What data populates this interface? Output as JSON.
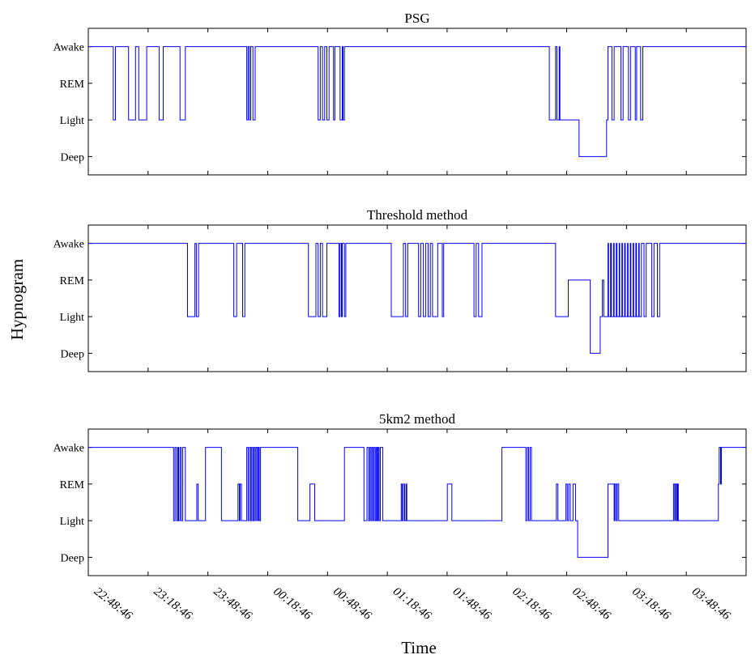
{
  "figure": {
    "ylabel": "Hypnogram",
    "xlabel": "Time"
  },
  "chart_data": [
    {
      "type": "line",
      "step": true,
      "title": "PSG",
      "ylabel": "",
      "xlabel": "",
      "stages": [
        "Deep",
        "Light",
        "REM",
        "Awake"
      ],
      "ylim": [
        -0.5,
        3.5
      ],
      "x_unit": "minutes after 22:48:46",
      "xlim": [
        0,
        330
      ],
      "xticks": [
        "22:48:46",
        "23:18:46",
        "23:48:46",
        "00:18:46",
        "00:48:46",
        "01:18:46",
        "01:48:46",
        "02:18:46",
        "02:48:46",
        "03:18:46",
        "03:48:46"
      ],
      "color": "#0000ff",
      "points": [
        [
          0,
          3
        ],
        [
          12.5,
          1
        ],
        [
          13.6,
          3
        ],
        [
          20.2,
          1
        ],
        [
          23.7,
          3
        ],
        [
          25.3,
          1
        ],
        [
          29.3,
          3
        ],
        [
          35.5,
          1
        ],
        [
          37.6,
          3
        ],
        [
          46,
          1
        ],
        [
          48.7,
          3
        ],
        [
          79.5,
          1
        ],
        [
          80.2,
          3
        ],
        [
          80.8,
          1
        ],
        [
          81.5,
          3
        ],
        [
          82.6,
          1
        ],
        [
          83.7,
          3
        ],
        [
          115.3,
          1
        ],
        [
          116.4,
          3
        ],
        [
          117.5,
          1
        ],
        [
          118.6,
          3
        ],
        [
          119.7,
          1
        ],
        [
          120.8,
          3
        ],
        [
          123,
          1
        ],
        [
          123.7,
          3
        ],
        [
          126.3,
          1
        ],
        [
          127.4,
          3
        ],
        [
          127.8,
          1
        ],
        [
          128.5,
          3
        ],
        [
          231.3,
          1
        ],
        [
          234.4,
          3
        ],
        [
          235.1,
          1
        ],
        [
          236.2,
          3
        ],
        [
          236.6,
          1
        ],
        [
          238.2,
          1
        ],
        [
          246.2,
          0
        ],
        [
          260,
          1
        ],
        [
          260.7,
          3
        ],
        [
          262.7,
          1
        ],
        [
          263.8,
          3
        ],
        [
          267.2,
          1
        ],
        [
          268.3,
          3
        ],
        [
          271,
          1
        ],
        [
          272,
          3
        ],
        [
          274.4,
          1
        ],
        [
          275.1,
          3
        ],
        [
          277.1,
          1
        ],
        [
          278.2,
          3
        ],
        [
          330,
          3
        ]
      ]
    },
    {
      "type": "line",
      "step": true,
      "title": "Threshold method",
      "ylabel": "",
      "xlabel": "",
      "stages": [
        "Deep",
        "Light",
        "REM",
        "Awake"
      ],
      "ylim": [
        -0.5,
        3.5
      ],
      "x_unit": "minutes after 22:48:46",
      "xlim": [
        0,
        330
      ],
      "xticks": [
        "22:48:46",
        "23:18:46",
        "23:48:46",
        "00:18:46",
        "00:48:46",
        "01:18:46",
        "01:48:46",
        "02:18:46",
        "02:48:46",
        "03:18:46",
        "03:48:46"
      ],
      "color": "#0000ff",
      "points": [
        [
          0,
          3
        ],
        [
          49.8,
          1
        ],
        [
          53.5,
          3
        ],
        [
          54.2,
          1
        ],
        [
          55.3,
          3
        ],
        [
          73,
          1
        ],
        [
          74.4,
          3
        ],
        [
          77.4,
          1
        ],
        [
          78.5,
          3
        ],
        [
          110.4,
          1
        ],
        [
          114.2,
          3
        ],
        [
          115.3,
          1
        ],
        [
          116.4,
          3
        ],
        [
          117.5,
          1
        ],
        [
          119.7,
          3
        ],
        [
          125.8,
          1
        ],
        [
          126.3,
          3
        ],
        [
          127,
          1
        ],
        [
          127.4,
          3
        ],
        [
          128.5,
          1
        ],
        [
          129.2,
          3
        ],
        [
          152,
          1
        ],
        [
          158.1,
          3
        ],
        [
          159.2,
          1
        ],
        [
          160.3,
          3
        ],
        [
          165.7,
          1
        ],
        [
          166.8,
          3
        ],
        [
          168.1,
          1
        ],
        [
          169.3,
          3
        ],
        [
          170.5,
          1
        ],
        [
          171.6,
          3
        ],
        [
          172.7,
          1
        ],
        [
          175.3,
          3
        ],
        [
          177.6,
          1
        ],
        [
          178.3,
          3
        ],
        [
          193.5,
          1
        ],
        [
          194.6,
          3
        ],
        [
          195.8,
          1
        ],
        [
          197.5,
          3
        ],
        [
          234.4,
          1
        ],
        [
          240.8,
          2
        ],
        [
          251.8,
          0
        ],
        [
          256.8,
          1
        ],
        [
          257.9,
          2
        ],
        [
          258.6,
          1
        ],
        [
          260.7,
          3
        ],
        [
          261,
          1
        ],
        [
          262,
          3
        ],
        [
          262.4,
          1
        ],
        [
          263.5,
          3
        ],
        [
          263.8,
          1
        ],
        [
          264.9,
          3
        ],
        [
          265.2,
          1
        ],
        [
          266.3,
          3
        ],
        [
          266.6,
          1
        ],
        [
          267.7,
          3
        ],
        [
          268,
          1
        ],
        [
          269.1,
          3
        ],
        [
          269.4,
          1
        ],
        [
          270.5,
          3
        ],
        [
          270.8,
          1
        ],
        [
          271.9,
          3
        ],
        [
          272.2,
          1
        ],
        [
          273.3,
          3
        ],
        [
          273.6,
          1
        ],
        [
          274.7,
          3
        ],
        [
          275,
          1
        ],
        [
          276.1,
          3
        ],
        [
          276.4,
          1
        ],
        [
          277.5,
          3
        ],
        [
          278.8,
          1
        ],
        [
          279.9,
          3
        ],
        [
          282.7,
          1
        ],
        [
          283.8,
          3
        ],
        [
          285.5,
          1
        ],
        [
          286.6,
          3
        ],
        [
          330,
          3
        ]
      ]
    },
    {
      "type": "line",
      "step": true,
      "title": "5km2 method",
      "ylabel": "",
      "xlabel": "",
      "stages": [
        "Deep",
        "Light",
        "REM",
        "Awake"
      ],
      "ylim": [
        -0.5,
        3.5
      ],
      "x_unit": "minutes after 22:48:46",
      "xlim": [
        0,
        330
      ],
      "xticks": [
        "22:48:46",
        "23:18:46",
        "23:48:46",
        "00:18:46",
        "00:48:46",
        "01:18:46",
        "01:48:46",
        "02:18:46",
        "02:48:46",
        "03:18:46",
        "03:48:46"
      ],
      "color": "#0000ff",
      "points": [
        [
          0,
          3
        ],
        [
          42.8,
          1
        ],
        [
          43.5,
          3
        ],
        [
          44.2,
          1
        ],
        [
          44.9,
          3
        ],
        [
          45.3,
          1
        ],
        [
          46,
          3
        ],
        [
          46.6,
          1
        ],
        [
          47.4,
          3
        ],
        [
          48.7,
          1
        ],
        [
          54.4,
          2
        ],
        [
          55.1,
          1
        ],
        [
          58.8,
          3
        ],
        [
          66.8,
          1
        ],
        [
          75.1,
          2
        ],
        [
          75.8,
          1
        ],
        [
          76.1,
          2
        ],
        [
          76.8,
          1
        ],
        [
          79.5,
          3
        ],
        [
          80.2,
          1
        ],
        [
          80.8,
          3
        ],
        [
          81.5,
          1
        ],
        [
          82,
          3
        ],
        [
          82.6,
          1
        ],
        [
          83.1,
          3
        ],
        [
          83.7,
          1
        ],
        [
          84.2,
          3
        ],
        [
          84.9,
          1
        ],
        [
          85.3,
          3
        ],
        [
          85.8,
          1
        ],
        [
          86.4,
          3
        ],
        [
          105.1,
          1
        ],
        [
          111.2,
          2
        ],
        [
          113.6,
          1
        ],
        [
          128.5,
          3
        ],
        [
          138.3,
          1
        ],
        [
          139.8,
          3
        ],
        [
          140.6,
          1
        ],
        [
          141.2,
          3
        ],
        [
          141.8,
          1
        ],
        [
          142.3,
          3
        ],
        [
          142.9,
          1
        ],
        [
          143.4,
          3
        ],
        [
          144,
          1
        ],
        [
          144.5,
          3
        ],
        [
          145,
          1
        ],
        [
          145.4,
          3
        ],
        [
          145.9,
          1
        ],
        [
          146.5,
          3
        ],
        [
          147.7,
          1
        ],
        [
          157,
          2
        ],
        [
          157.5,
          1
        ],
        [
          158.1,
          2
        ],
        [
          158.7,
          1
        ],
        [
          159.4,
          2
        ],
        [
          159.8,
          1
        ],
        [
          180.1,
          2
        ],
        [
          182.4,
          1
        ],
        [
          207.5,
          3
        ],
        [
          219.5,
          1
        ],
        [
          220.2,
          3
        ],
        [
          220.9,
          1
        ],
        [
          221.6,
          3
        ],
        [
          222.3,
          1
        ],
        [
          234.8,
          2
        ],
        [
          235.6,
          1
        ],
        [
          239.6,
          2
        ],
        [
          240.3,
          1
        ],
        [
          241,
          2
        ],
        [
          241.8,
          1
        ],
        [
          243.2,
          2
        ],
        [
          244.4,
          1
        ],
        [
          245.5,
          0
        ],
        [
          260.7,
          2
        ],
        [
          263.8,
          1
        ],
        [
          264.2,
          2
        ],
        [
          264.9,
          1
        ],
        [
          265.4,
          2
        ],
        [
          266.1,
          1
        ],
        [
          293.6,
          2
        ],
        [
          294.2,
          1
        ],
        [
          294.6,
          2
        ],
        [
          295.2,
          1
        ],
        [
          295.6,
          2
        ],
        [
          296,
          1
        ],
        [
          316.1,
          2
        ],
        [
          316.5,
          3
        ],
        [
          317.2,
          2
        ],
        [
          317.6,
          3
        ],
        [
          330,
          3
        ]
      ]
    }
  ]
}
